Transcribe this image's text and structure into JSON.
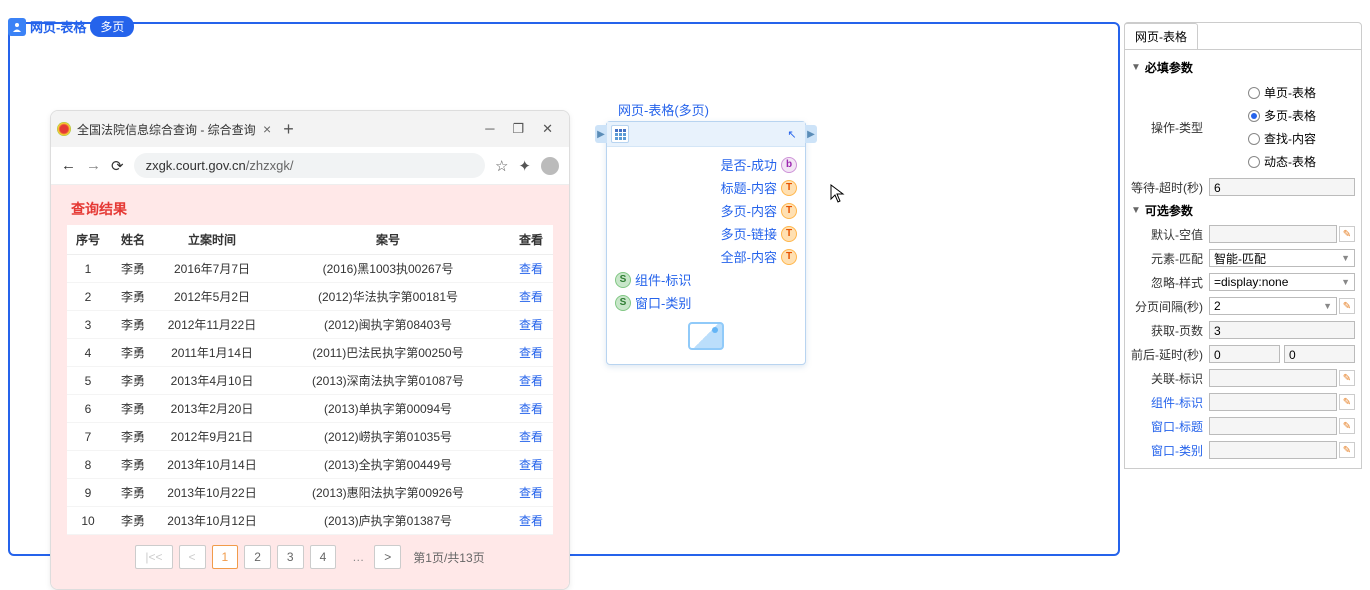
{
  "tagBar": {
    "label": "网页-表格",
    "pill": "多页"
  },
  "browser": {
    "tabTitle": "全国法院信息综合查询 - 综合查询",
    "url_host": "zxgk.court.gov.cn",
    "url_path": "/zhzxgk/",
    "minimize": "─",
    "maximize": "❐",
    "close": "✕"
  },
  "resultTitle": "查询结果",
  "columns": [
    "序号",
    "姓名",
    "立案时间",
    "案号",
    "查看"
  ],
  "rows": [
    {
      "n": "1",
      "name": "李勇",
      "date": "2016年7月7日",
      "case": "(2016)黑1003执00267号",
      "act": "查看"
    },
    {
      "n": "2",
      "name": "李勇",
      "date": "2012年5月2日",
      "case": "(2012)华法执字第00181号",
      "act": "查看"
    },
    {
      "n": "3",
      "name": "李勇",
      "date": "2012年11月22日",
      "case": "(2012)闽执字第08403号",
      "act": "查看"
    },
    {
      "n": "4",
      "name": "李勇",
      "date": "2011年1月14日",
      "case": "(2011)巴法民执字第00250号",
      "act": "查看"
    },
    {
      "n": "5",
      "name": "李勇",
      "date": "2013年4月10日",
      "case": "(2013)深南法执字第01087号",
      "act": "查看"
    },
    {
      "n": "6",
      "name": "李勇",
      "date": "2013年2月20日",
      "case": "(2013)单执字第00094号",
      "act": "查看"
    },
    {
      "n": "7",
      "name": "李勇",
      "date": "2012年9月21日",
      "case": "(2012)崂执字第01035号",
      "act": "查看"
    },
    {
      "n": "8",
      "name": "李勇",
      "date": "2013年10月14日",
      "case": "(2013)全执字第00449号",
      "act": "查看"
    },
    {
      "n": "9",
      "name": "李勇",
      "date": "2013年10月22日",
      "case": "(2013)惠阳法执字第00926号",
      "act": "查看"
    },
    {
      "n": "10",
      "name": "李勇",
      "date": "2013年10月12日",
      "case": "(2013)庐执字第01387号",
      "act": "查看"
    }
  ],
  "pagination": {
    "first": "|<<",
    "prev": "<",
    "next": ">",
    "pages": [
      "1",
      "2",
      "3",
      "4"
    ],
    "current": "1",
    "info": "第1页/共13页"
  },
  "node": {
    "title": "网页-表格(多页)",
    "out": [
      {
        "label": "是否-成功",
        "badge": "b",
        "cls": "badge-b"
      },
      {
        "label": "标题-内容",
        "badge": "T",
        "cls": "badge-t"
      },
      {
        "label": "多页-内容",
        "badge": "T",
        "cls": "badge-t"
      },
      {
        "label": "多页-链接",
        "badge": "T",
        "cls": "badge-t"
      },
      {
        "label": "全部-内容",
        "badge": "T",
        "cls": "badge-t"
      }
    ],
    "in": [
      {
        "label": "组件-标识",
        "badge": "S",
        "cls": "badge-s"
      },
      {
        "label": "窗口-类别",
        "badge": "S",
        "cls": "badge-s"
      }
    ]
  },
  "rightPanel": {
    "tab": "网页-表格",
    "section1": "必填参数",
    "section2": "可选参数",
    "opType": {
      "label": "操作-类型",
      "options": [
        "单页-表格",
        "多页-表格",
        "查找-内容",
        "动态-表格"
      ],
      "selected": "多页-表格"
    },
    "wait": {
      "label": "等待-超时(秒)",
      "value": "6"
    },
    "defaultEmpty": {
      "label": "默认-空值",
      "value": ""
    },
    "elemMatch": {
      "label": "元素-匹配",
      "value": "智能-匹配"
    },
    "ignoreStyle": {
      "label": "忽略-样式",
      "value": "=display:none"
    },
    "pageInterval": {
      "label": "分页间隔(秒)",
      "value": "2"
    },
    "getPages": {
      "label": "获取-页数",
      "value": "3"
    },
    "delay": {
      "label": "前后-延时(秒)",
      "v1": "0",
      "v2": "0"
    },
    "relId": {
      "label": "关联-标识",
      "value": ""
    },
    "compId": {
      "label": "组件-标识",
      "value": ""
    },
    "winTitle": {
      "label": "窗口-标题",
      "value": ""
    },
    "winClass": {
      "label": "窗口-类别",
      "value": ""
    }
  }
}
